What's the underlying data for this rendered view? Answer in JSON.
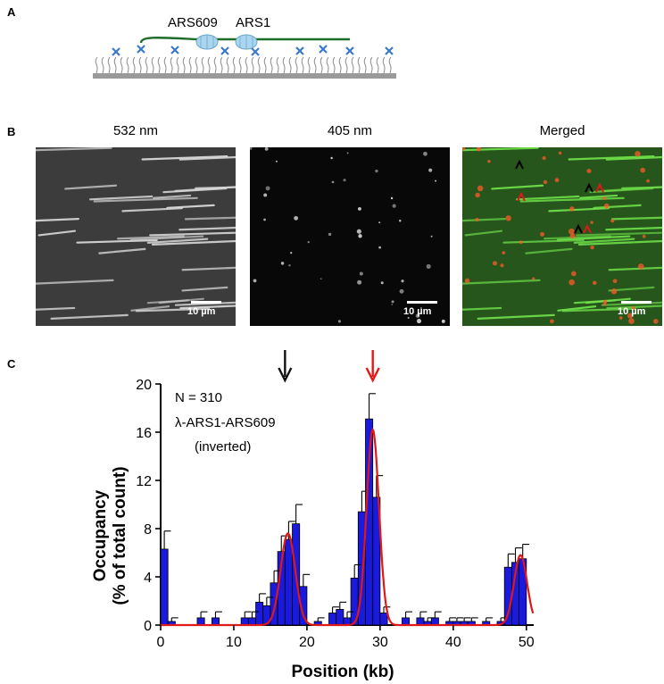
{
  "panels": {
    "a": {
      "letter": "A",
      "labels": [
        "ARS609",
        "ARS1"
      ]
    },
    "b": {
      "letter": "B",
      "images": [
        {
          "title": "532 nm",
          "scalebar": "10 µm"
        },
        {
          "title": "405 nm",
          "scalebar": "10 µm"
        },
        {
          "title": "Merged",
          "scalebar": "10 µm"
        }
      ]
    },
    "c": {
      "letter": "C",
      "annotations": [
        "N = 310",
        "λ-ARS1-ARS609",
        "(inverted)"
      ]
    }
  },
  "colors": {
    "bar": "#1a1adc",
    "fit": "#e01818",
    "arrow_black": "#111111",
    "arrow_red": "#e01818",
    "dna": "#1c6e2a",
    "nucleosome": "#a9d6ee",
    "tether": "#3a78c9",
    "surface": "#9a9a9a"
  },
  "chart_data": {
    "type": "bar",
    "xlabel": "Position (kb)",
    "ylabel": "Occupancy\n(% of total count)",
    "xlim": [
      0,
      51
    ],
    "ylim": [
      0,
      20
    ],
    "xticks": [
      0,
      10,
      20,
      30,
      40,
      50
    ],
    "yticks": [
      0,
      4,
      8,
      12,
      16,
      20
    ],
    "bin_width": 1,
    "bins": [
      {
        "x": 0.5,
        "value": 6.3,
        "err": 1.5
      },
      {
        "x": 1.5,
        "value": 0.3,
        "err": 0.3
      },
      {
        "x": 5.5,
        "value": 0.6,
        "err": 0.5
      },
      {
        "x": 7.5,
        "value": 0.6,
        "err": 0.5
      },
      {
        "x": 11.5,
        "value": 0.6,
        "err": 0.5
      },
      {
        "x": 12.5,
        "value": 0.6,
        "err": 0.5
      },
      {
        "x": 13.5,
        "value": 1.9,
        "err": 0.7
      },
      {
        "x": 14.5,
        "value": 1.6,
        "err": 0.7
      },
      {
        "x": 15.5,
        "value": 3.5,
        "err": 1.0
      },
      {
        "x": 16.5,
        "value": 6.1,
        "err": 1.3
      },
      {
        "x": 17.5,
        "value": 7.1,
        "err": 1.5
      },
      {
        "x": 18.5,
        "value": 8.4,
        "err": 1.6
      },
      {
        "x": 19.5,
        "value": 3.2,
        "err": 1.0
      },
      {
        "x": 21.5,
        "value": 0.3,
        "err": 0.3
      },
      {
        "x": 23.5,
        "value": 1.0,
        "err": 0.5
      },
      {
        "x": 24.5,
        "value": 1.3,
        "err": 0.6
      },
      {
        "x": 25.5,
        "value": 0.6,
        "err": 0.5
      },
      {
        "x": 26.5,
        "value": 3.9,
        "err": 1.1
      },
      {
        "x": 27.5,
        "value": 9.4,
        "err": 1.7
      },
      {
        "x": 28.5,
        "value": 17.1,
        "err": 2.1
      },
      {
        "x": 29.5,
        "value": 10.6,
        "err": 1.8
      },
      {
        "x": 30.5,
        "value": 1.0,
        "err": 0.5
      },
      {
        "x": 33.5,
        "value": 0.6,
        "err": 0.5
      },
      {
        "x": 35.5,
        "value": 0.6,
        "err": 0.5
      },
      {
        "x": 36.5,
        "value": 0.3,
        "err": 0.3
      },
      {
        "x": 37.5,
        "value": 0.6,
        "err": 0.5
      },
      {
        "x": 39.5,
        "value": 0.3,
        "err": 0.3
      },
      {
        "x": 40.5,
        "value": 0.3,
        "err": 0.3
      },
      {
        "x": 41.5,
        "value": 0.3,
        "err": 0.3
      },
      {
        "x": 42.5,
        "value": 0.3,
        "err": 0.3
      },
      {
        "x": 44.5,
        "value": 0.3,
        "err": 0.3
      },
      {
        "x": 46.5,
        "value": 0.3,
        "err": 0.3
      },
      {
        "x": 47.5,
        "value": 4.8,
        "err": 1.1
      },
      {
        "x": 48.5,
        "value": 5.2,
        "err": 1.2
      },
      {
        "x": 49.5,
        "value": 5.5,
        "err": 1.2
      }
    ],
    "fit_peaks": [
      {
        "center": 17.4,
        "height": 7.6,
        "sigma": 1.0
      },
      {
        "center": 29.0,
        "height": 16.2,
        "sigma": 0.85
      },
      {
        "center": 49.2,
        "height": 5.8,
        "sigma": 0.9
      }
    ],
    "arrows": [
      {
        "x": 17.0,
        "color": "black"
      },
      {
        "x": 29.0,
        "color": "red"
      }
    ]
  }
}
